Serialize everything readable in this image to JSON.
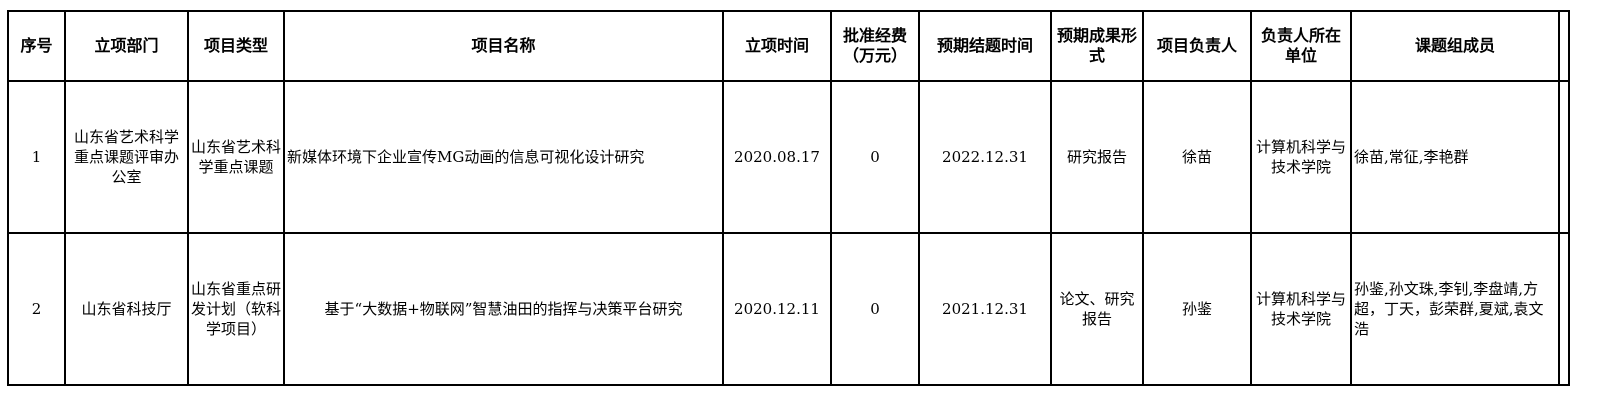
{
  "headers": [
    "序号",
    "立项部门",
    "项目类型",
    "项目名称",
    "立项时间",
    "批准经费（万元）",
    "预期结题时间",
    "预期成果形式",
    "项目负责人",
    "负责人所在单位",
    "课题组成员"
  ],
  "rows": [
    {
      "no": "1",
      "dept": "山东省艺术科学重点课题评审办公室",
      "type": "山东省艺术科学重点课题",
      "name": "新媒体环境下企业宣传MG动画的信息可视化设计研究",
      "start": "2020.08.17",
      "funding": "0",
      "end": "2022.12.31",
      "output": "研究报告",
      "leader": "徐苗",
      "unit": "计算机科学与技术学院",
      "members": "徐苗,常征,李艳群"
    },
    {
      "no": "2",
      "dept": "山东省科技厅",
      "type": "山东省重点研发计划（软科学项目）",
      "name": "基于“大数据+物联网”智慧油田的指挥与决策平台研究",
      "start": "2020.12.11",
      "funding": "0",
      "end": "2021.12.31",
      "output": "论文、研究报告",
      "leader": "孙鉴",
      "unit": "计算机科学与技术学院",
      "members": "孙鉴,孙文珠,李钊,李盘靖,方超，丁天，彭荣群,夏斌,袁文浩"
    }
  ]
}
